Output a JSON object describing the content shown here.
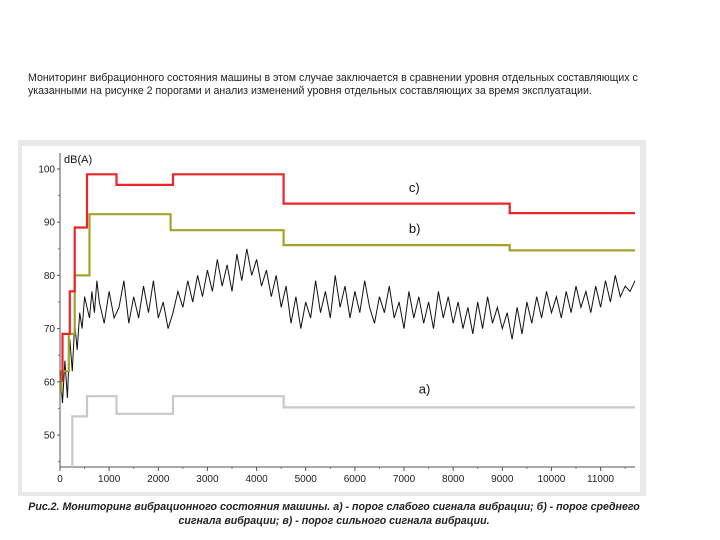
{
  "intro": {
    "text": "Мониторинг вибрационного состояния машины в этом случае заключается в сравнении уровня отдельных составляющих с указанными на рисунке 2 порогами и анализ изменений уровня отдельных составляющих за время эксплуатации."
  },
  "caption": {
    "text": "Рис.2. Мониторинг вибрационного состояния машины. а) - порог слабого сигнала вибрации; б) - порог среднего сигнала вибрации; в) - порог сильного сигнала вибрации."
  },
  "chart_data": {
    "type": "line",
    "title": "",
    "xlabel": "",
    "ylabel": "dB(A)",
    "xlim": [
      0,
      11700
    ],
    "ylim": [
      44,
      103
    ],
    "grid": false,
    "x_ticks": [
      0,
      1000,
      2000,
      3000,
      4000,
      5000,
      6000,
      7000,
      8000,
      9000,
      10000,
      11000
    ],
    "y_ticks": [
      50,
      60,
      70,
      80,
      90,
      100
    ],
    "series": [
      {
        "name": "c)",
        "color": "#e8262a",
        "step": true,
        "points": [
          [
            50,
            60
          ],
          [
            50,
            69
          ],
          [
            200,
            69
          ],
          [
            200,
            77
          ],
          [
            300,
            77
          ],
          [
            300,
            89
          ],
          [
            550,
            89
          ],
          [
            550,
            99
          ],
          [
            1150,
            99
          ],
          [
            1150,
            97
          ],
          [
            2300,
            97
          ],
          [
            2300,
            99
          ],
          [
            4550,
            99
          ],
          [
            4550,
            93.5
          ],
          [
            9150,
            93.5
          ],
          [
            9150,
            91.7
          ],
          [
            11700,
            91.7
          ]
        ]
      },
      {
        "name": "b)",
        "color": "#a5a22b",
        "step": true,
        "points": [
          [
            30,
            58
          ],
          [
            30,
            62
          ],
          [
            180,
            62
          ],
          [
            180,
            69
          ],
          [
            300,
            69
          ],
          [
            300,
            80
          ],
          [
            600,
            80
          ],
          [
            600,
            91.5
          ],
          [
            2250,
            91.5
          ],
          [
            2250,
            88.5
          ],
          [
            4550,
            88.5
          ],
          [
            4550,
            85.7
          ],
          [
            9150,
            85.7
          ],
          [
            9150,
            84.7
          ],
          [
            11700,
            84.7
          ]
        ]
      },
      {
        "name": "a)",
        "color": "#c8c8c8",
        "step": true,
        "points": [
          [
            250,
            44
          ],
          [
            250,
            53.5
          ],
          [
            550,
            53.5
          ],
          [
            550,
            57.3
          ],
          [
            1150,
            57.3
          ],
          [
            1150,
            54
          ],
          [
            2300,
            54
          ],
          [
            2300,
            57.3
          ],
          [
            4550,
            57.3
          ],
          [
            4550,
            55.2
          ],
          [
            11700,
            55.2
          ]
        ]
      },
      {
        "name": "",
        "color": "#111111",
        "points": [
          [
            0,
            62
          ],
          [
            50,
            56
          ],
          [
            100,
            64
          ],
          [
            150,
            57
          ],
          [
            200,
            68
          ],
          [
            250,
            62
          ],
          [
            300,
            71
          ],
          [
            350,
            66
          ],
          [
            400,
            73
          ],
          [
            450,
            70
          ],
          [
            500,
            76
          ],
          [
            550,
            74
          ],
          [
            600,
            72
          ],
          [
            650,
            77
          ],
          [
            700,
            73
          ],
          [
            750,
            79
          ],
          [
            800,
            75
          ],
          [
            900,
            71
          ],
          [
            1000,
            77
          ],
          [
            1100,
            72
          ],
          [
            1200,
            74
          ],
          [
            1300,
            79
          ],
          [
            1400,
            71
          ],
          [
            1500,
            76
          ],
          [
            1600,
            72
          ],
          [
            1700,
            78
          ],
          [
            1800,
            73
          ],
          [
            1900,
            79
          ],
          [
            2000,
            72
          ],
          [
            2100,
            75
          ],
          [
            2200,
            70
          ],
          [
            2300,
            73
          ],
          [
            2400,
            77
          ],
          [
            2500,
            74
          ],
          [
            2600,
            79
          ],
          [
            2700,
            75
          ],
          [
            2800,
            80
          ],
          [
            2900,
            76
          ],
          [
            3000,
            81
          ],
          [
            3100,
            77
          ],
          [
            3200,
            83
          ],
          [
            3300,
            78
          ],
          [
            3400,
            82
          ],
          [
            3500,
            77
          ],
          [
            3600,
            84
          ],
          [
            3700,
            79
          ],
          [
            3800,
            85
          ],
          [
            3900,
            80
          ],
          [
            4000,
            83
          ],
          [
            4100,
            78
          ],
          [
            4200,
            81
          ],
          [
            4300,
            76
          ],
          [
            4400,
            80
          ],
          [
            4500,
            74
          ],
          [
            4600,
            78
          ],
          [
            4700,
            71
          ],
          [
            4800,
            76
          ],
          [
            4900,
            70
          ],
          [
            5000,
            75
          ],
          [
            5100,
            72
          ],
          [
            5200,
            79
          ],
          [
            5300,
            73
          ],
          [
            5400,
            77
          ],
          [
            5500,
            72
          ],
          [
            5600,
            80
          ],
          [
            5700,
            74
          ],
          [
            5800,
            78
          ],
          [
            5900,
            72
          ],
          [
            6000,
            77
          ],
          [
            6100,
            73
          ],
          [
            6200,
            79
          ],
          [
            6300,
            74
          ],
          [
            6400,
            71
          ],
          [
            6500,
            76
          ],
          [
            6600,
            73
          ],
          [
            6700,
            78
          ],
          [
            6800,
            72
          ],
          [
            6900,
            75
          ],
          [
            7000,
            70
          ],
          [
            7100,
            77
          ],
          [
            7200,
            72
          ],
          [
            7300,
            76
          ],
          [
            7400,
            71
          ],
          [
            7500,
            75
          ],
          [
            7600,
            70
          ],
          [
            7700,
            77
          ],
          [
            7800,
            72
          ],
          [
            7900,
            76
          ],
          [
            8000,
            71
          ],
          [
            8100,
            75
          ],
          [
            8200,
            70
          ],
          [
            8300,
            74
          ],
          [
            8400,
            69
          ],
          [
            8500,
            75
          ],
          [
            8600,
            70
          ],
          [
            8700,
            76
          ],
          [
            8800,
            71
          ],
          [
            8900,
            74
          ],
          [
            9000,
            70
          ],
          [
            9100,
            73
          ],
          [
            9200,
            68
          ],
          [
            9300,
            74
          ],
          [
            9400,
            69
          ],
          [
            9500,
            75
          ],
          [
            9600,
            71
          ],
          [
            9700,
            76
          ],
          [
            9800,
            72
          ],
          [
            9900,
            77
          ],
          [
            10000,
            73
          ],
          [
            10100,
            76
          ],
          [
            10200,
            72
          ],
          [
            10300,
            77
          ],
          [
            10400,
            73
          ],
          [
            10500,
            78
          ],
          [
            10600,
            74
          ],
          [
            10700,
            77
          ],
          [
            10800,
            73
          ],
          [
            10900,
            78
          ],
          [
            11000,
            74
          ],
          [
            11100,
            79
          ],
          [
            11200,
            75
          ],
          [
            11300,
            80
          ],
          [
            11400,
            76
          ],
          [
            11500,
            78
          ],
          [
            11600,
            77
          ],
          [
            11700,
            79
          ]
        ]
      }
    ],
    "annotations": [
      {
        "text": "c)",
        "x": 7100,
        "y": 95.7
      },
      {
        "text": "b)",
        "x": 7100,
        "y": 88
      },
      {
        "text": "a)",
        "x": 7300,
        "y": 57.8
      }
    ]
  }
}
